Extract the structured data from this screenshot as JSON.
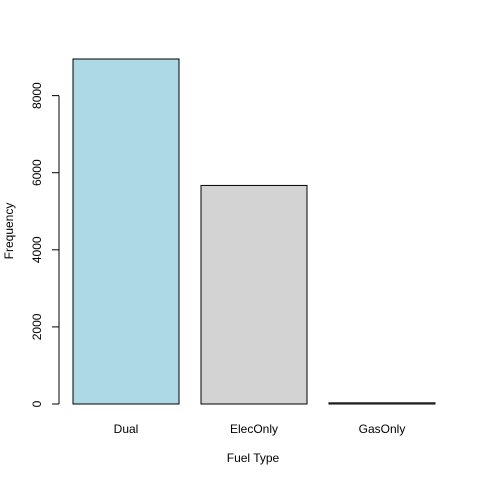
{
  "chart_data": {
    "type": "bar",
    "categories": [
      "Dual",
      "ElecOnly",
      "GasOnly"
    ],
    "values": [
      8950,
      5670,
      30
    ],
    "bar_colors": [
      "#add8e6",
      "#d3d3d3",
      "#d3d3d3"
    ],
    "border_color": "#000000",
    "title": "",
    "xlabel": "Fuel Type",
    "ylabel": "Frequency",
    "ylim": [
      0,
      8950
    ],
    "yticks": [
      0,
      2000,
      4000,
      6000,
      8000
    ],
    "ytick_labels": [
      "0",
      "2000",
      "4000",
      "6000",
      "8000"
    ],
    "grid": false,
    "legend": "none"
  }
}
